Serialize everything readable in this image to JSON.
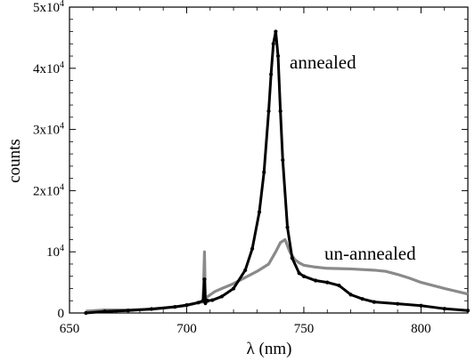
{
  "chart_data": {
    "type": "line",
    "xlabel": "λ (nm)",
    "ylabel": "counts",
    "xlim": [
      650,
      820
    ],
    "ylim": [
      0,
      50000
    ],
    "x_ticks": [
      650,
      700,
      750,
      800
    ],
    "y_ticks": [
      {
        "value": 0,
        "label": "0",
        "exp": ""
      },
      {
        "value": 10000,
        "label": "10",
        "exp": "4"
      },
      {
        "value": 20000,
        "label": "2x10",
        "exp": "4"
      },
      {
        "value": 30000,
        "label": "3x10",
        "exp": "4"
      },
      {
        "value": 40000,
        "label": "4x10",
        "exp": "4"
      },
      {
        "value": 50000,
        "label": "5x10",
        "exp": "4"
      }
    ],
    "grid": false,
    "series": [
      {
        "name": "annealed",
        "color": "#000000",
        "marker": "dot",
        "x": [
          657,
          665,
          675,
          685,
          695,
          700,
          705,
          707,
          707.6,
          708,
          708.4,
          709,
          711,
          715,
          720,
          725,
          728,
          731,
          733,
          735,
          736,
          737,
          738,
          739,
          740,
          741,
          743,
          745,
          748,
          750,
          755,
          760,
          765,
          770,
          775,
          780,
          790,
          800,
          810,
          820
        ],
        "y": [
          0,
          250,
          400,
          650,
          1000,
          1300,
          1700,
          2000,
          5500,
          1600,
          2000,
          2000,
          2100,
          2700,
          4000,
          7000,
          10500,
          16500,
          23000,
          33000,
          39000,
          44000,
          46000,
          42000,
          33000,
          25000,
          14000,
          9000,
          6500,
          6000,
          5300,
          5000,
          4500,
          3000,
          2300,
          1800,
          1500,
          1200,
          700,
          400
        ]
      },
      {
        "name": "un-annealed",
        "color": "#8a8a8a",
        "marker": "none",
        "x": [
          657,
          665,
          675,
          685,
          695,
          700,
          705,
          707,
          707.6,
          708,
          708.4,
          709,
          712,
          715,
          720,
          725,
          730,
          735,
          738,
          740,
          742,
          744,
          746,
          748,
          750,
          755,
          760,
          770,
          780,
          785,
          790,
          795,
          800,
          810,
          820
        ],
        "y": [
          300,
          500,
          500,
          600,
          1000,
          1200,
          1700,
          1800,
          10000,
          1500,
          2500,
          2700,
          3500,
          4000,
          4800,
          5800,
          6800,
          8000,
          10000,
          11500,
          12000,
          10000,
          8800,
          8200,
          7800,
          7500,
          7300,
          7200,
          7000,
          6800,
          6300,
          5700,
          5000,
          4000,
          3100
        ]
      }
    ]
  }
}
